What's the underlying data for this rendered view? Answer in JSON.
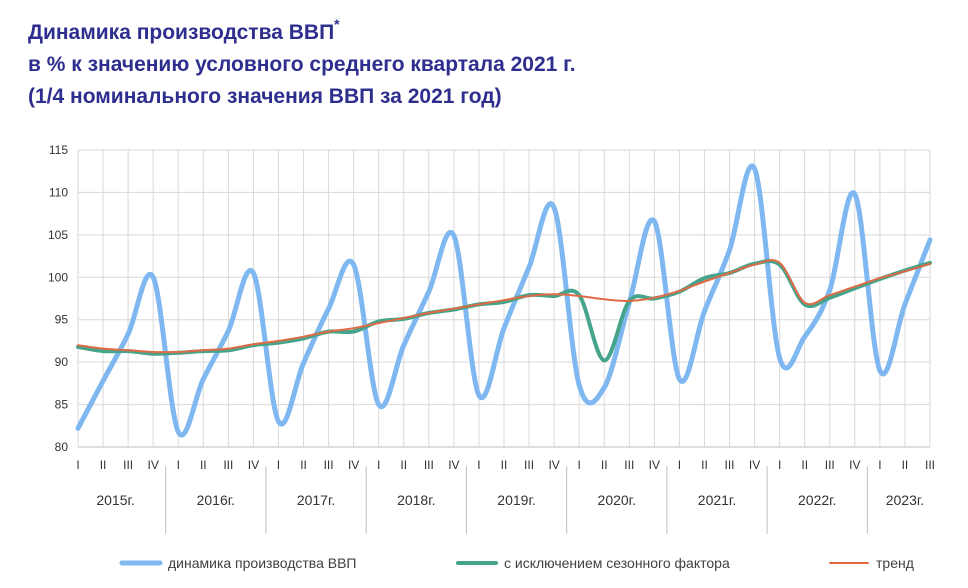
{
  "title": {
    "line1": "Динамика производства ВВП",
    "marker": "*",
    "line2": "в % к значению условного среднего квартала 2021 г.",
    "line3": "(1/4 номинального значения ВВП за 2021 год)"
  },
  "chart_data": {
    "type": "line",
    "ylim": [
      80,
      115
    ],
    "yticks": [
      80,
      85,
      90,
      95,
      100,
      105,
      110,
      115
    ],
    "quarters": [
      "I",
      "II",
      "III",
      "IV",
      "I",
      "II",
      "III",
      "IV",
      "I",
      "II",
      "III",
      "IV",
      "I",
      "II",
      "III",
      "IV",
      "I",
      "II",
      "III",
      "IV",
      "I",
      "II",
      "III",
      "IV",
      "I",
      "II",
      "III",
      "IV",
      "I",
      "II",
      "III",
      "IV",
      "I",
      "II",
      "III"
    ],
    "years": [
      {
        "label": "2015г.",
        "quarters": 4
      },
      {
        "label": "2016г.",
        "quarters": 4
      },
      {
        "label": "2017г.",
        "quarters": 4
      },
      {
        "label": "2018г.",
        "quarters": 4
      },
      {
        "label": "2019г.",
        "quarters": 4
      },
      {
        "label": "2020г.",
        "quarters": 4
      },
      {
        "label": "2021г.",
        "quarters": 4
      },
      {
        "label": "2022г.",
        "quarters": 4
      },
      {
        "label": "2023г.",
        "quarters": 3
      }
    ],
    "grid": true,
    "legend_position": "bottom",
    "series": [
      {
        "name": "динамика производства ВВП",
        "color": "#7fb8f0",
        "width": 5,
        "values": [
          82.2,
          87.8,
          93.3,
          100.0,
          81.8,
          88.0,
          93.7,
          100.5,
          83.0,
          89.9,
          96.3,
          101.5,
          85.0,
          92.0,
          98.3,
          104.9,
          86.1,
          94.0,
          101.2,
          108.2,
          87.3,
          87.0,
          97.0,
          106.6,
          88.0,
          96.0,
          103.2,
          112.8,
          90.5,
          93.0,
          98.5,
          109.8,
          89.0,
          96.8,
          104.4
        ]
      },
      {
        "name": "с исключением сезонного фактора",
        "color": "#45a48b",
        "width": 4,
        "values": [
          91.8,
          91.3,
          91.3,
          91.0,
          91.1,
          91.3,
          91.4,
          92.0,
          92.3,
          92.8,
          93.6,
          93.6,
          94.8,
          95.1,
          95.8,
          96.2,
          96.8,
          97.1,
          97.9,
          97.8,
          97.9,
          90.2,
          97.2,
          97.5,
          98.3,
          99.9,
          100.5,
          101.6,
          101.5,
          96.8,
          97.6,
          98.7,
          99.8,
          100.8,
          101.7
        ]
      },
      {
        "name": "тренд",
        "color": "#e06a45",
        "width": 2,
        "values": [
          92.0,
          91.6,
          91.4,
          91.2,
          91.2,
          91.4,
          91.6,
          92.1,
          92.5,
          93.0,
          93.6,
          94.0,
          94.6,
          95.2,
          95.8,
          96.3,
          96.8,
          97.3,
          97.8,
          98.0,
          97.8,
          97.4,
          97.2,
          97.6,
          98.4,
          99.5,
          100.5,
          101.5,
          101.7,
          97.0,
          97.9,
          98.9,
          99.9,
          100.7,
          101.6
        ]
      }
    ]
  }
}
